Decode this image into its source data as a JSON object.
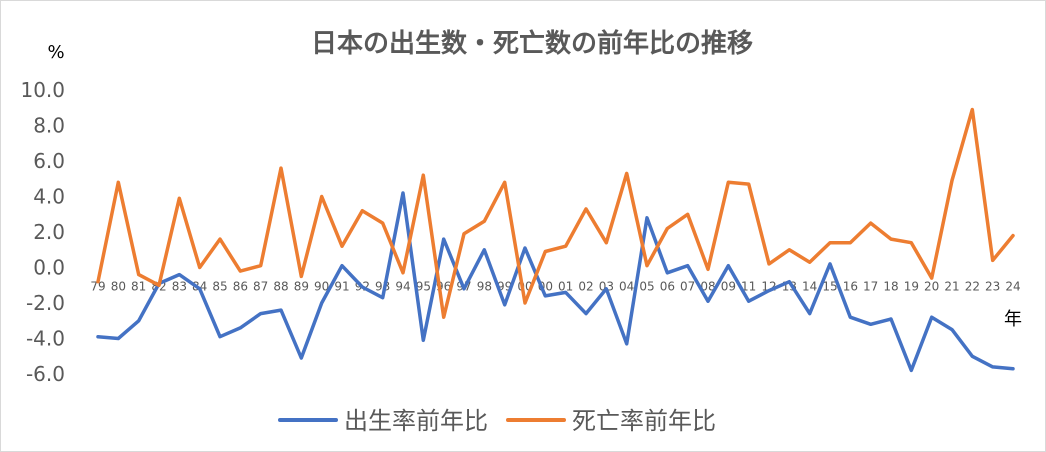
{
  "chart_data": {
    "type": "line",
    "title": "日本の出生数・死亡数の前年比の推移",
    "ylabel": "%",
    "xlabel": "年",
    "ylim": [
      -6.0,
      10.0
    ],
    "yticks": [
      "10.0",
      "8.0",
      "6.0",
      "4.0",
      "2.0",
      "0.0",
      "-2.0",
      "-4.0",
      "-6.0"
    ],
    "categories": [
      "79",
      "80",
      "81",
      "82",
      "83",
      "84",
      "85",
      "86",
      "87",
      "88",
      "89",
      "90",
      "91",
      "92",
      "93",
      "94",
      "95",
      "96",
      "97",
      "98",
      "99",
      "00",
      "00",
      "01",
      "02",
      "03",
      "04",
      "05",
      "06",
      "07",
      "08",
      "09",
      "11",
      "12",
      "13",
      "14",
      "15",
      "16",
      "17",
      "18",
      "19",
      "20",
      "21",
      "22",
      "23",
      "24"
    ],
    "series": [
      {
        "name": "出生率前年比",
        "color": "#4472C4",
        "values": [
          -3.9,
          -4.0,
          -3.0,
          -0.9,
          -0.4,
          -1.2,
          -3.9,
          -3.4,
          -2.6,
          -2.4,
          -5.1,
          -2.0,
          0.1,
          -1.1,
          -1.7,
          4.2,
          -4.1,
          1.6,
          -1.2,
          1.0,
          -2.1,
          1.1,
          -1.6,
          -1.4,
          -2.6,
          -1.2,
          -4.3,
          2.8,
          -0.3,
          0.1,
          -1.9,
          0.1,
          -1.9,
          -1.3,
          -0.8,
          -2.6,
          0.2,
          -2.8,
          -3.2,
          -2.9,
          -5.8,
          -2.8,
          -3.5,
          -5.0,
          -5.6,
          -5.7
        ]
      },
      {
        "name": "死亡率前年比",
        "color": "#ED7D31",
        "values": [
          -0.8,
          4.8,
          -0.4,
          -1.0,
          3.9,
          0.0,
          1.6,
          -0.2,
          0.1,
          5.6,
          -0.5,
          4.0,
          1.2,
          3.2,
          2.5,
          -0.3,
          5.2,
          -2.8,
          1.9,
          2.6,
          4.8,
          -2.0,
          0.9,
          1.2,
          3.3,
          1.4,
          5.3,
          0.1,
          2.2,
          3.0,
          -0.1,
          4.8,
          4.7,
          0.2,
          1.0,
          0.3,
          1.4,
          1.4,
          2.5,
          1.6,
          1.4,
          -0.6,
          4.9,
          8.9,
          0.4,
          1.8
        ]
      }
    ],
    "legend_position": "bottom"
  }
}
